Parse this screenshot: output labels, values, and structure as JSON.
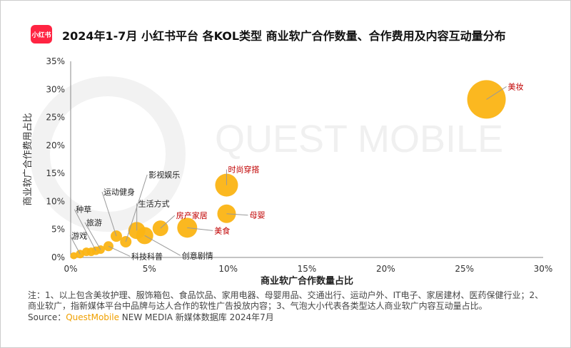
{
  "header": {
    "logo_text": "小红书",
    "title": "2024年1-7月 小红书平台 各KOL类型 商业软广合作数量、合作费用及内容互动量分布"
  },
  "watermark": "QUEST MOBILE",
  "chart_data": {
    "type": "bubble",
    "xlabel": "商业软广合作数量占比",
    "ylabel": "商业软广合作费用占比",
    "xlim": [
      0,
      30
    ],
    "ylim": [
      0,
      35
    ],
    "xticks": [
      "0%",
      "5%",
      "10%",
      "15%",
      "20%",
      "25%",
      "30%"
    ],
    "yticks": [
      "0%",
      "5%",
      "10%",
      "15%",
      "20%",
      "25%",
      "30%",
      "35%"
    ],
    "grid": false,
    "bubble_color": "#fbb414",
    "points": [
      {
        "label": "美妆",
        "x": 26.4,
        "y": 28.2,
        "size": 27,
        "highlight": true
      },
      {
        "label": "时尚穿搭",
        "x": 9.9,
        "y": 12.9,
        "size": 16,
        "highlight": true
      },
      {
        "label": "母婴",
        "x": 9.9,
        "y": 7.8,
        "size": 13,
        "highlight": true
      },
      {
        "label": "美食",
        "x": 7.4,
        "y": 5.3,
        "size": 14,
        "highlight": true
      },
      {
        "label": "房产家居",
        "x": 5.7,
        "y": 5.2,
        "size": 11,
        "highlight": true
      },
      {
        "label": "生活方式",
        "x": 4.2,
        "y": 4.8,
        "size": 12,
        "highlight": false
      },
      {
        "label": "创意剧情",
        "x": 4.7,
        "y": 3.9,
        "size": 12,
        "highlight": false
      },
      {
        "label": "影视娱乐",
        "x": 3.5,
        "y": 2.8,
        "size": 8,
        "highlight": false
      },
      {
        "label": "运动健身",
        "x": 2.9,
        "y": 3.8,
        "size": 8,
        "highlight": false
      },
      {
        "label": "科技科普",
        "x": 2.4,
        "y": 2.0,
        "size": 7,
        "highlight": false
      },
      {
        "label": "旅游",
        "x": 1.9,
        "y": 1.4,
        "size": 6,
        "highlight": false
      },
      {
        "label": "种草",
        "x": 1.6,
        "y": 1.2,
        "size": 6,
        "highlight": false
      },
      {
        "label": "游戏",
        "x": 0.6,
        "y": 0.6,
        "size": 6,
        "highlight": false
      },
      {
        "label": "",
        "x": 1.0,
        "y": 1.0,
        "size": 6,
        "highlight": false
      },
      {
        "label": "",
        "x": 1.3,
        "y": 1.0,
        "size": 6,
        "highlight": false
      },
      {
        "label": "",
        "x": 0.2,
        "y": 0.3,
        "size": 5,
        "highlight": false
      }
    ]
  },
  "notes": "注：1、以上包含美妆护理、服饰箱包、食品饮品、家用电器、母婴用品、交通出行、运动户外、IT电子、家居建材、医药保健行业；2、商业软广，指新媒体平台中品牌与达人合作的软性广告投放内容；3、气泡大小代表各类型达人商业软广内容互动量占比。",
  "source": {
    "prefix": "Source：",
    "brand": "QuestMobile",
    "rest": " NEW MEDIA 新媒体数据库 2024年7月"
  }
}
